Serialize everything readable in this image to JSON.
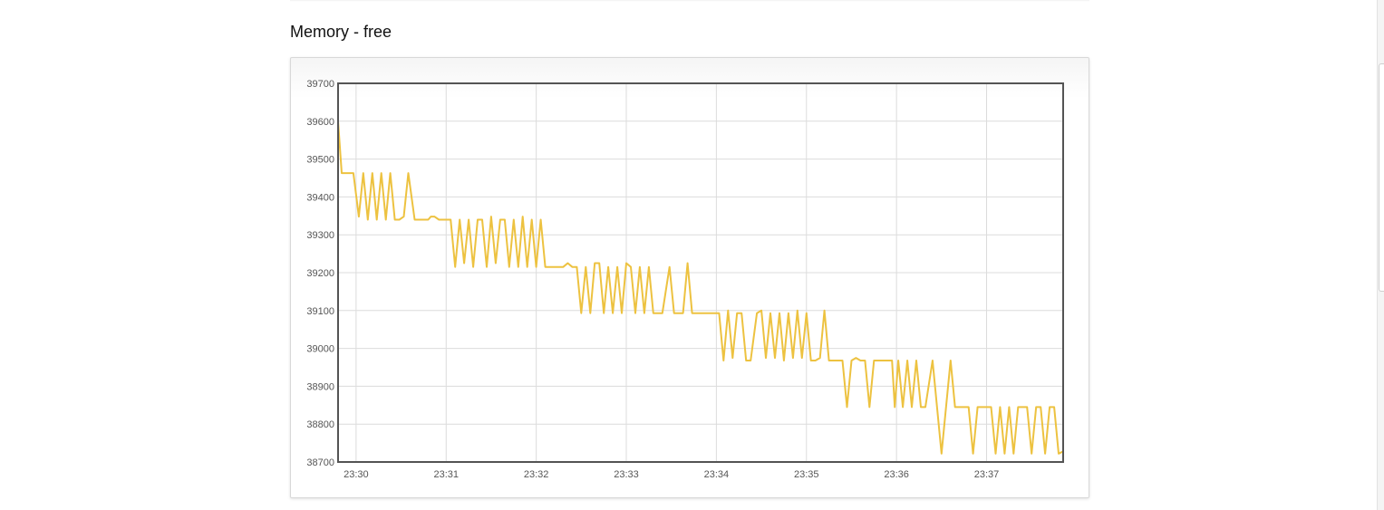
{
  "page": {
    "title": "Memory - free"
  },
  "chart_data": {
    "type": "line",
    "title": "",
    "xlabel": "",
    "ylabel": "",
    "x_ticks": [
      "23:30",
      "23:31",
      "23:32",
      "23:33",
      "23:34",
      "23:35",
      "23:36",
      "23:37"
    ],
    "y_ticks": [
      38700,
      38800,
      38900,
      39000,
      39100,
      39200,
      39300,
      39400,
      39500,
      39600,
      39700
    ],
    "ylim": [
      38700,
      39700
    ],
    "xlim_minutes": [
      29.8,
      37.85
    ],
    "grid": true,
    "line_color": "#EDC240",
    "series": [
      {
        "values_by_minute": [
          [
            29.8,
            39600
          ],
          [
            29.84,
            39463
          ],
          [
            29.97,
            39463
          ],
          [
            30.03,
            39348
          ],
          [
            30.08,
            39463
          ],
          [
            30.13,
            39340
          ],
          [
            30.18,
            39463
          ],
          [
            30.23,
            39340
          ],
          [
            30.28,
            39463
          ],
          [
            30.33,
            39340
          ],
          [
            30.38,
            39463
          ],
          [
            30.43,
            39340
          ],
          [
            30.48,
            39340
          ],
          [
            30.53,
            39348
          ],
          [
            30.58,
            39463
          ],
          [
            30.65,
            39340
          ],
          [
            30.8,
            39340
          ],
          [
            30.83,
            39348
          ],
          [
            30.87,
            39348
          ],
          [
            30.92,
            39340
          ],
          [
            31.05,
            39340
          ],
          [
            31.1,
            39215
          ],
          [
            31.15,
            39340
          ],
          [
            31.2,
            39225
          ],
          [
            31.25,
            39340
          ],
          [
            31.3,
            39215
          ],
          [
            31.35,
            39340
          ],
          [
            31.4,
            39340
          ],
          [
            31.45,
            39215
          ],
          [
            31.5,
            39348
          ],
          [
            31.55,
            39225
          ],
          [
            31.6,
            39340
          ],
          [
            31.65,
            39340
          ],
          [
            31.7,
            39215
          ],
          [
            31.75,
            39340
          ],
          [
            31.8,
            39215
          ],
          [
            31.85,
            39348
          ],
          [
            31.9,
            39215
          ],
          [
            31.95,
            39340
          ],
          [
            32.0,
            39215
          ],
          [
            32.05,
            39340
          ],
          [
            32.1,
            39215
          ],
          [
            32.3,
            39215
          ],
          [
            32.35,
            39225
          ],
          [
            32.4,
            39215
          ],
          [
            32.45,
            39215
          ],
          [
            32.5,
            39093
          ],
          [
            32.55,
            39215
          ],
          [
            32.6,
            39093
          ],
          [
            32.65,
            39225
          ],
          [
            32.7,
            39225
          ],
          [
            32.75,
            39093
          ],
          [
            32.8,
            39215
          ],
          [
            32.85,
            39093
          ],
          [
            32.9,
            39215
          ],
          [
            32.95,
            39093
          ],
          [
            33.0,
            39225
          ],
          [
            33.05,
            39215
          ],
          [
            33.1,
            39093
          ],
          [
            33.15,
            39215
          ],
          [
            33.2,
            39093
          ],
          [
            33.25,
            39215
          ],
          [
            33.3,
            39093
          ],
          [
            33.4,
            39093
          ],
          [
            33.48,
            39215
          ],
          [
            33.53,
            39093
          ],
          [
            33.63,
            39093
          ],
          [
            33.68,
            39225
          ],
          [
            33.73,
            39093
          ],
          [
            34.03,
            39093
          ],
          [
            34.08,
            38968
          ],
          [
            34.13,
            39100
          ],
          [
            34.18,
            38975
          ],
          [
            34.23,
            39093
          ],
          [
            34.28,
            39093
          ],
          [
            34.33,
            38968
          ],
          [
            34.38,
            38968
          ],
          [
            34.45,
            39093
          ],
          [
            34.5,
            39100
          ],
          [
            34.55,
            38975
          ],
          [
            34.6,
            39093
          ],
          [
            34.65,
            38975
          ],
          [
            34.7,
            39093
          ],
          [
            34.75,
            38968
          ],
          [
            34.8,
            39093
          ],
          [
            34.85,
            38975
          ],
          [
            34.9,
            39100
          ],
          [
            34.95,
            38975
          ],
          [
            35.0,
            39093
          ],
          [
            35.05,
            38968
          ],
          [
            35.1,
            38968
          ],
          [
            35.15,
            38975
          ],
          [
            35.2,
            39100
          ],
          [
            35.25,
            38968
          ],
          [
            35.4,
            38968
          ],
          [
            35.45,
            38845
          ],
          [
            35.5,
            38968
          ],
          [
            35.55,
            38975
          ],
          [
            35.6,
            38968
          ],
          [
            35.65,
            38968
          ],
          [
            35.7,
            38845
          ],
          [
            35.75,
            38968
          ],
          [
            35.95,
            38968
          ],
          [
            35.98,
            38845
          ],
          [
            36.02,
            38968
          ],
          [
            36.07,
            38845
          ],
          [
            36.12,
            38968
          ],
          [
            36.17,
            38845
          ],
          [
            36.22,
            38968
          ],
          [
            36.27,
            38845
          ],
          [
            36.32,
            38845
          ],
          [
            36.4,
            38968
          ],
          [
            36.5,
            38722
          ],
          [
            36.55,
            38845
          ],
          [
            36.6,
            38968
          ],
          [
            36.65,
            38845
          ],
          [
            36.8,
            38845
          ],
          [
            36.85,
            38722
          ],
          [
            36.9,
            38845
          ],
          [
            37.05,
            38845
          ],
          [
            37.1,
            38722
          ],
          [
            37.15,
            38845
          ],
          [
            37.2,
            38722
          ],
          [
            37.25,
            38845
          ],
          [
            37.3,
            38722
          ],
          [
            37.35,
            38845
          ],
          [
            37.45,
            38845
          ],
          [
            37.5,
            38722
          ],
          [
            37.55,
            38845
          ],
          [
            37.6,
            38845
          ],
          [
            37.65,
            38722
          ],
          [
            37.7,
            38845
          ],
          [
            37.75,
            38845
          ],
          [
            37.8,
            38722
          ],
          [
            37.85,
            38728
          ]
        ]
      }
    ]
  }
}
